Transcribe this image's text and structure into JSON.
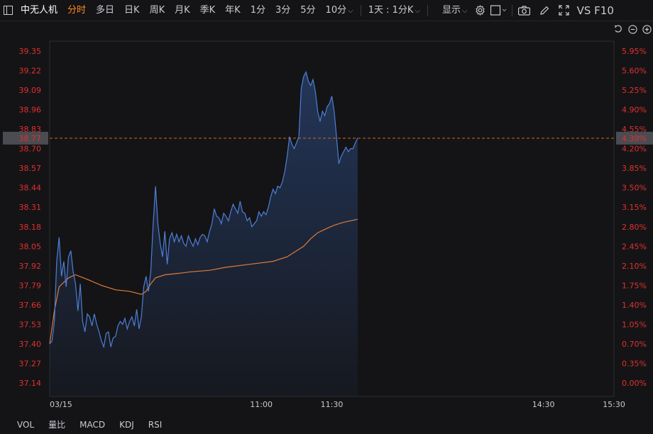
{
  "toolbar": {
    "stock_name": "中无人机",
    "tabs": [
      "分时",
      "多日",
      "日K",
      "周K",
      "月K",
      "季K",
      "年K",
      "1分",
      "3分",
      "5分",
      "10分"
    ],
    "active_tab": "分时",
    "range_select": "1天 : 1分K",
    "display_label": "显示",
    "vs_f10": "VS F10"
  },
  "colors": {
    "price_line": "#4d7fd6",
    "avg_line": "#e07b39",
    "axis_text": "#e0302f",
    "reference_line": "#c86a2e",
    "background": "#141416"
  },
  "current_price": {
    "price": "38.77",
    "pct": "4.39%"
  },
  "bottom_tabs": [
    "VOL",
    "量比",
    "MACD",
    "KDJ",
    "RSI"
  ],
  "chart_data": {
    "type": "line",
    "title": "",
    "ylim": [
      37.14,
      39.35
    ],
    "y_ticks_left": [
      "39.35",
      "39.22",
      "39.09",
      "38.96",
      "38.83",
      "38.70",
      "38.57",
      "38.44",
      "38.31",
      "38.18",
      "38.05",
      "37.92",
      "37.79",
      "37.66",
      "37.53",
      "37.40",
      "37.27",
      "37.14"
    ],
    "y_ticks_right": [
      "5.95%",
      "5.60%",
      "5.25%",
      "4.90%",
      "4.55%",
      "4.20%",
      "3.85%",
      "3.50%",
      "3.15%",
      "2.80%",
      "2.45%",
      "2.10%",
      "1.75%",
      "1.40%",
      "1.05%",
      "0.70%",
      "0.35%",
      "0.00%"
    ],
    "x_ticks": [
      {
        "label": "03/15",
        "minute": 0
      },
      {
        "label": "11:00",
        "minute": 90
      },
      {
        "label": "11:30",
        "minute": 120
      },
      {
        "label": "14:30",
        "minute": 210
      },
      {
        "label": "15:30",
        "minute": 240
      }
    ],
    "series": [
      {
        "points": [
          [
            0,
            37.4
          ],
          [
            1,
            37.42
          ],
          [
            2,
            37.55
          ],
          [
            3,
            37.95
          ],
          [
            4,
            38.11
          ],
          [
            5,
            37.85
          ],
          [
            6,
            37.95
          ],
          [
            7,
            37.78
          ],
          [
            8,
            37.98
          ],
          [
            9,
            38.02
          ],
          [
            10,
            37.88
          ],
          [
            11,
            37.8
          ],
          [
            12,
            37.62
          ],
          [
            13,
            37.8
          ],
          [
            14,
            37.55
          ],
          [
            15,
            37.48
          ],
          [
            16,
            37.6
          ],
          [
            17,
            37.58
          ],
          [
            18,
            37.52
          ],
          [
            19,
            37.6
          ],
          [
            20,
            37.53
          ],
          [
            21,
            37.48
          ],
          [
            22,
            37.42
          ],
          [
            23,
            37.38
          ],
          [
            24,
            37.47
          ],
          [
            25,
            37.48
          ],
          [
            26,
            37.38
          ],
          [
            27,
            37.44
          ],
          [
            28,
            37.45
          ],
          [
            29,
            37.52
          ],
          [
            30,
            37.55
          ],
          [
            31,
            37.53
          ],
          [
            32,
            37.57
          ],
          [
            33,
            37.5
          ],
          [
            34,
            37.55
          ],
          [
            35,
            37.58
          ],
          [
            36,
            37.52
          ],
          [
            37,
            37.63
          ],
          [
            38,
            37.5
          ],
          [
            39,
            37.58
          ],
          [
            40,
            37.78
          ],
          [
            41,
            37.85
          ],
          [
            42,
            37.75
          ],
          [
            43,
            37.88
          ],
          [
            44,
            38.2
          ],
          [
            45,
            38.45
          ],
          [
            46,
            38.2
          ],
          [
            47,
            38.07
          ],
          [
            48,
            37.98
          ],
          [
            49,
            38.15
          ],
          [
            50,
            37.93
          ],
          [
            51,
            38.1
          ],
          [
            52,
            38.14
          ],
          [
            53,
            38.08
          ],
          [
            54,
            38.13
          ],
          [
            55,
            38.08
          ],
          [
            56,
            38.12
          ],
          [
            57,
            38.07
          ],
          [
            58,
            38.05
          ],
          [
            59,
            38.12
          ],
          [
            60,
            38.08
          ],
          [
            61,
            38.05
          ],
          [
            62,
            38.1
          ],
          [
            63,
            38.06
          ],
          [
            64,
            38.11
          ],
          [
            65,
            38.13
          ],
          [
            66,
            38.12
          ],
          [
            67,
            38.08
          ],
          [
            68,
            38.15
          ],
          [
            69,
            38.2
          ],
          [
            70,
            38.3
          ],
          [
            71,
            38.25
          ],
          [
            72,
            38.24
          ],
          [
            73,
            38.2
          ],
          [
            74,
            38.27
          ],
          [
            75,
            38.25
          ],
          [
            76,
            38.22
          ],
          [
            77,
            38.28
          ],
          [
            78,
            38.33
          ],
          [
            79,
            38.3
          ],
          [
            80,
            38.27
          ],
          [
            81,
            38.35
          ],
          [
            82,
            38.28
          ],
          [
            83,
            38.27
          ],
          [
            84,
            38.22
          ],
          [
            85,
            38.24
          ],
          [
            86,
            38.18
          ],
          [
            87,
            38.2
          ],
          [
            88,
            38.22
          ],
          [
            89,
            38.28
          ],
          [
            90,
            38.25
          ],
          [
            91,
            38.28
          ],
          [
            92,
            38.26
          ],
          [
            93,
            38.31
          ],
          [
            94,
            38.38
          ],
          [
            95,
            38.43
          ],
          [
            96,
            38.4
          ],
          [
            97,
            38.45
          ],
          [
            98,
            38.44
          ],
          [
            99,
            38.48
          ],
          [
            100,
            38.55
          ],
          [
            101,
            38.65
          ],
          [
            102,
            38.78
          ],
          [
            103,
            38.73
          ],
          [
            104,
            38.7
          ],
          [
            105,
            38.74
          ],
          [
            106,
            38.78
          ],
          [
            107,
            39.1
          ],
          [
            108,
            39.18
          ],
          [
            109,
            39.21
          ],
          [
            110,
            39.15
          ],
          [
            111,
            39.12
          ],
          [
            112,
            39.16
          ],
          [
            113,
            39.08
          ],
          [
            114,
            38.95
          ],
          [
            115,
            38.88
          ],
          [
            116,
            38.95
          ],
          [
            117,
            38.92
          ],
          [
            118,
            38.98
          ],
          [
            119,
            39.0
          ],
          [
            120,
            39.05
          ],
          [
            121,
            38.95
          ],
          [
            122,
            38.78
          ],
          [
            123,
            38.6
          ],
          [
            124,
            38.65
          ],
          [
            125,
            38.68
          ],
          [
            126,
            38.71
          ],
          [
            127,
            38.68
          ],
          [
            128,
            38.7
          ],
          [
            129,
            38.7
          ],
          [
            130,
            38.74
          ],
          [
            131,
            38.77
          ]
        ]
      },
      {
        "points": [
          [
            0,
            37.4
          ],
          [
            2,
            37.62
          ],
          [
            4,
            37.78
          ],
          [
            8,
            37.84
          ],
          [
            11,
            37.86
          ],
          [
            16,
            37.83
          ],
          [
            22,
            37.79
          ],
          [
            28,
            37.76
          ],
          [
            34,
            37.75
          ],
          [
            39,
            37.73
          ],
          [
            41,
            37.75
          ],
          [
            43,
            37.8
          ],
          [
            45,
            37.84
          ],
          [
            49,
            37.86
          ],
          [
            55,
            37.87
          ],
          [
            60,
            37.88
          ],
          [
            68,
            37.89
          ],
          [
            75,
            37.91
          ],
          [
            85,
            37.93
          ],
          [
            95,
            37.95
          ],
          [
            101,
            37.98
          ],
          [
            105,
            38.02
          ],
          [
            108,
            38.05
          ],
          [
            111,
            38.1
          ],
          [
            114,
            38.14
          ],
          [
            118,
            38.17
          ],
          [
            121,
            38.19
          ],
          [
            125,
            38.21
          ],
          [
            128,
            38.22
          ],
          [
            131,
            38.23
          ]
        ]
      }
    ]
  }
}
